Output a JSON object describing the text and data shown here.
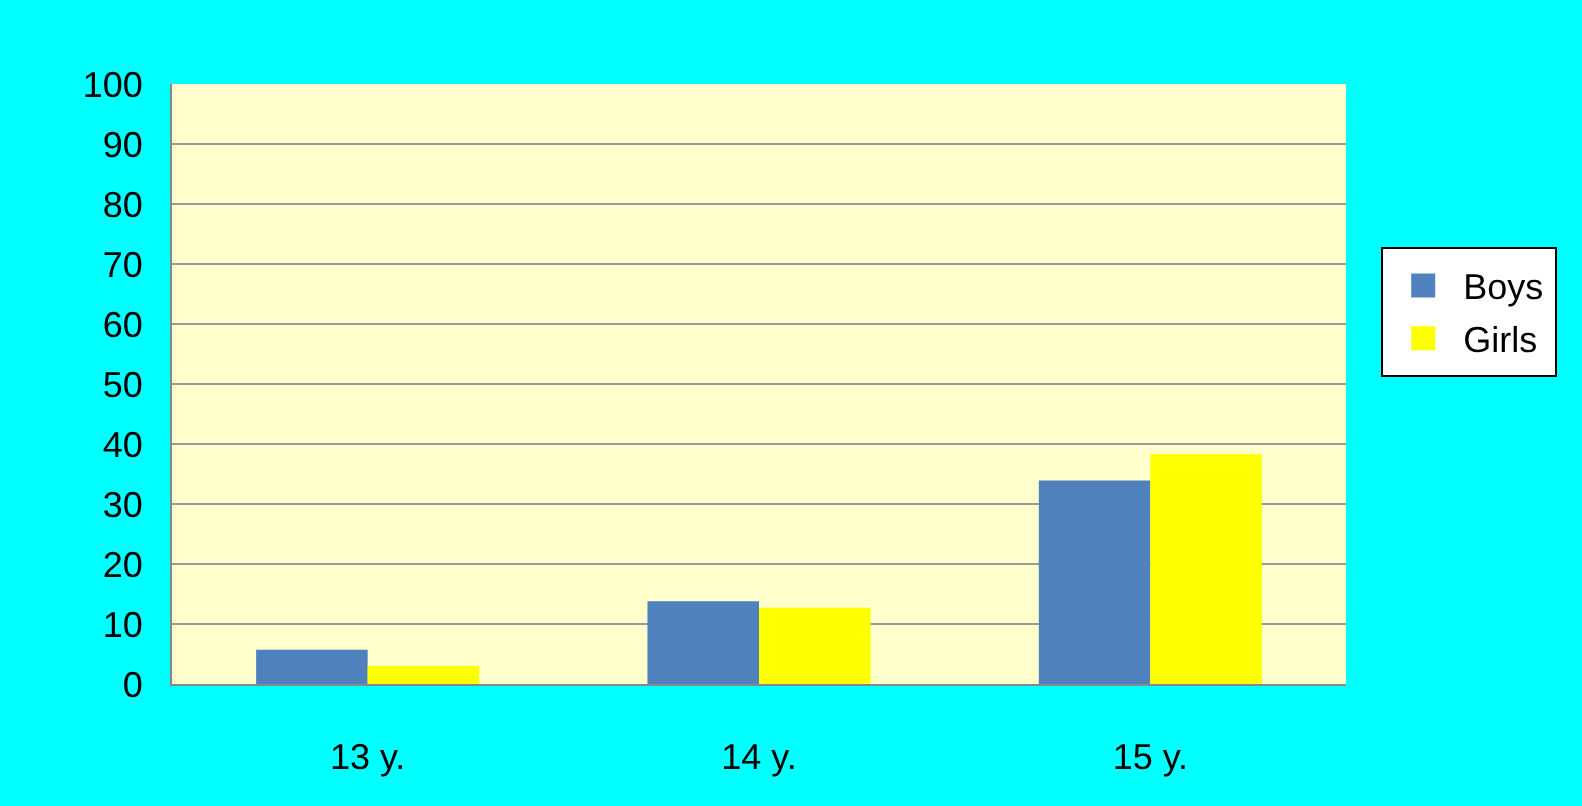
{
  "chart_data": {
    "type": "bar",
    "categories": [
      "13 y.",
      "14 y.",
      "15 y."
    ],
    "series": [
      {
        "name": "Boys",
        "color": "#4f81bd",
        "values": [
          5.7,
          13.8,
          33.9
        ]
      },
      {
        "name": "Girls",
        "color": "#ffff00",
        "values": [
          3,
          12.7,
          38.3
        ]
      }
    ],
    "ylim": [
      0,
      100
    ],
    "yticks": [
      0,
      10,
      20,
      30,
      40,
      50,
      60,
      70,
      80,
      90,
      100
    ],
    "grid": "y",
    "legend": "right"
  }
}
